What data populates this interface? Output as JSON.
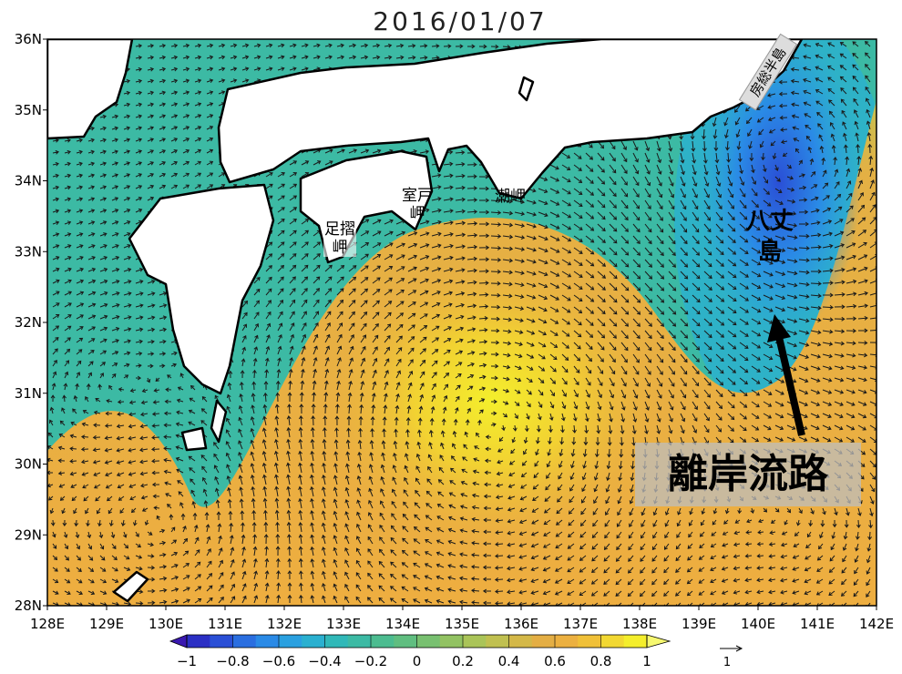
{
  "title": "2016/01/07",
  "map": {
    "xlim": [
      128,
      142
    ],
    "ylim": [
      28,
      36
    ],
    "xticks": [
      {
        "value": 128,
        "label": "128E"
      },
      {
        "value": 129,
        "label": "129E"
      },
      {
        "value": 130,
        "label": "130E"
      },
      {
        "value": 131,
        "label": "131E"
      },
      {
        "value": 132,
        "label": "132E"
      },
      {
        "value": 133,
        "label": "133E"
      },
      {
        "value": 134,
        "label": "134E"
      },
      {
        "value": 135,
        "label": "135E"
      },
      {
        "value": 136,
        "label": "136E"
      },
      {
        "value": 137,
        "label": "137E"
      },
      {
        "value": 138,
        "label": "138E"
      },
      {
        "value": 139,
        "label": "139E"
      },
      {
        "value": 140,
        "label": "140E"
      },
      {
        "value": 141,
        "label": "141E"
      },
      {
        "value": 142,
        "label": "142E"
      }
    ],
    "yticks": [
      {
        "value": 28,
        "label": "28N"
      },
      {
        "value": 29,
        "label": "29N"
      },
      {
        "value": 30,
        "label": "30N"
      },
      {
        "value": 31,
        "label": "31N"
      },
      {
        "value": 32,
        "label": "32N"
      },
      {
        "value": 33,
        "label": "33N"
      },
      {
        "value": 34,
        "label": "34N"
      },
      {
        "value": 35,
        "label": "35N"
      },
      {
        "value": 36,
        "label": "36N"
      }
    ]
  },
  "places": [
    "足摺岬",
    "室戸岬",
    "潮岬",
    "八丈島",
    "房総半島"
  ],
  "annotation": "離岸流路",
  "colorbar": {
    "range": [
      -1,
      1
    ],
    "colors": [
      "#2b2fc4",
      "#2a4fd6",
      "#2a6ee0",
      "#2a8ae6",
      "#2aa0e0",
      "#2ab0d0",
      "#30b8b8",
      "#3cbaa4",
      "#4cbc90",
      "#60be80",
      "#78c070",
      "#92c262",
      "#aac458",
      "#c0c050",
      "#d4b848",
      "#e4ae44",
      "#ecb040",
      "#f0c038",
      "#f2d832",
      "#f4ee2c"
    ],
    "under": "#3a18b0",
    "over": "#f6f870",
    "ticks": [
      {
        "value": -1,
        "label": "−1"
      },
      {
        "value": -0.8,
        "label": "−0.8"
      },
      {
        "value": -0.6,
        "label": "−0.6"
      },
      {
        "value": -0.4,
        "label": "−0.4"
      },
      {
        "value": -0.2,
        "label": "−0.2"
      },
      0,
      0.2,
      0.4,
      0.6,
      0.8,
      1
    ]
  },
  "vector_scale": 1
}
